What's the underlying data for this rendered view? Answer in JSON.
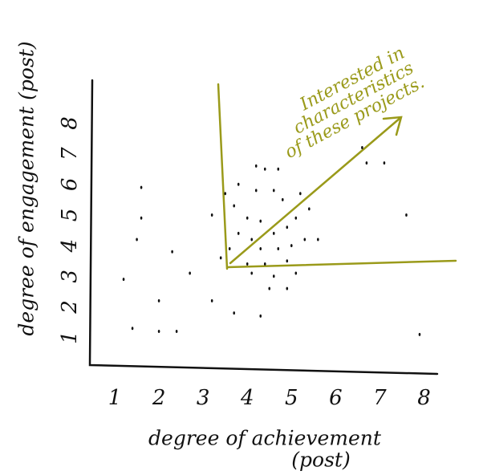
{
  "chart_data": {
    "type": "scatter",
    "x_label": "degree of achievement",
    "x_label_note": "(post)",
    "y_label": "degree of engagement (post)",
    "annotation": [
      "Interested in",
      "characteristics",
      "of these projects."
    ],
    "annotation_color": "#9a9a1a",
    "color": "#111111",
    "x": [
      1.6,
      1.6,
      1.5,
      1.2,
      1.4,
      2.0,
      2.4,
      2.3,
      2.0,
      2.7,
      3.2,
      3.2,
      3.7,
      4.3,
      3.5,
      3.7,
      3.8,
      4.2,
      4.4,
      4.7,
      4.2,
      4.6,
      4.8,
      4.0,
      4.3,
      3.8,
      4.1,
      4.6,
      4.9,
      5.1,
      5.4,
      5.2,
      3.6,
      4.3,
      4.7,
      5.0,
      5.3,
      5.6,
      3.4,
      4.0,
      4.4,
      4.9,
      4.1,
      4.6,
      5.1,
      4.5,
      4.9,
      6.6,
      7.1,
      6.7,
      7.6,
      7.9
    ],
    "values": [
      5.9,
      4.9,
      4.2,
      2.9,
      1.3,
      1.2,
      1.2,
      3.8,
      2.2,
      3.1,
      2.2,
      5.0,
      1.8,
      1.7,
      5.7,
      5.3,
      6.0,
      6.6,
      6.5,
      6.5,
      5.8,
      5.8,
      5.5,
      4.9,
      4.8,
      4.4,
      4.2,
      4.4,
      4.6,
      4.9,
      5.2,
      5.7,
      3.9,
      3.9,
      3.9,
      4.0,
      4.2,
      4.2,
      3.6,
      3.4,
      3.4,
      3.5,
      3.1,
      3.0,
      3.1,
      2.6,
      2.6,
      7.2,
      6.7,
      6.7,
      5.0,
      1.1
    ],
    "xlim": [
      0.4,
      8.3
    ],
    "ylim": [
      0.1,
      9.4
    ],
    "xticks": [
      1,
      2,
      3,
      4,
      5,
      6,
      7,
      8
    ],
    "yticks": [
      1,
      2,
      3,
      4,
      5,
      6,
      7,
      8
    ],
    "grid": false
  }
}
